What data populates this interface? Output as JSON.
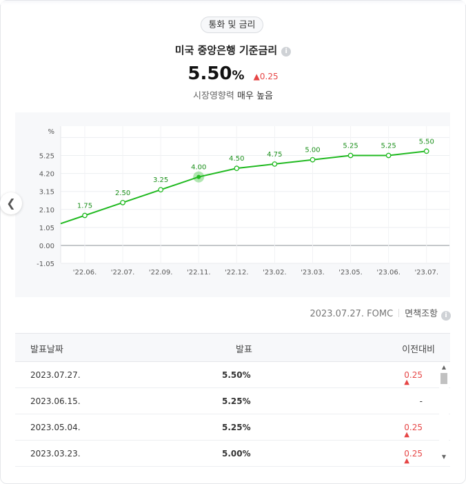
{
  "category_pill": "통화 및 금리",
  "title": "미국 중앙은행 기준금리",
  "rate": {
    "value": "5.50",
    "unit": "%",
    "change": "0.25",
    "change_dir": "up"
  },
  "influence": {
    "prefix": "시장영향력",
    "level": "매우 높음"
  },
  "chart_data": {
    "type": "line",
    "ylabel": "%",
    "y_ticks": [
      "5.25",
      "4.20",
      "3.15",
      "2.10",
      "1.05",
      "0.00",
      "-1.05"
    ],
    "categories": [
      "'22.06.",
      "'22.07.",
      "'22.09.",
      "'22.11.",
      "'22.12.",
      "'23.02.",
      "'23.03.",
      "'23.05.",
      "'23.06.",
      "'23.07."
    ],
    "values": [
      1.75,
      2.5,
      3.25,
      4.0,
      4.5,
      4.75,
      5.0,
      5.25,
      5.25,
      5.5
    ],
    "point_labels": [
      "1.75",
      "2.50",
      "3.25",
      "4.00",
      "4.50",
      "4.75",
      "5.00",
      "5.25",
      "5.25",
      "5.50"
    ],
    "ylim": [
      -1.05,
      6.3
    ],
    "highlight_index": 3,
    "line_color": "#1fb91f",
    "grid": true
  },
  "meta": {
    "date_text": "2023.07.27. FOMC",
    "link_text": "면책조항"
  },
  "table": {
    "headers": [
      "발표날짜",
      "발표",
      "이전대비"
    ],
    "rows": [
      {
        "date": "2023.07.27.",
        "value": "5.50%",
        "change": "0.25",
        "dir": "up"
      },
      {
        "date": "2023.06.15.",
        "value": "5.25%",
        "change": "-",
        "dir": "flat"
      },
      {
        "date": "2023.05.04.",
        "value": "5.25%",
        "change": "0.25",
        "dir": "up"
      },
      {
        "date": "2023.03.23.",
        "value": "5.00%",
        "change": "0.25",
        "dir": "up"
      }
    ]
  },
  "colors": {
    "up": "#e64545",
    "line": "#1fb91f"
  }
}
